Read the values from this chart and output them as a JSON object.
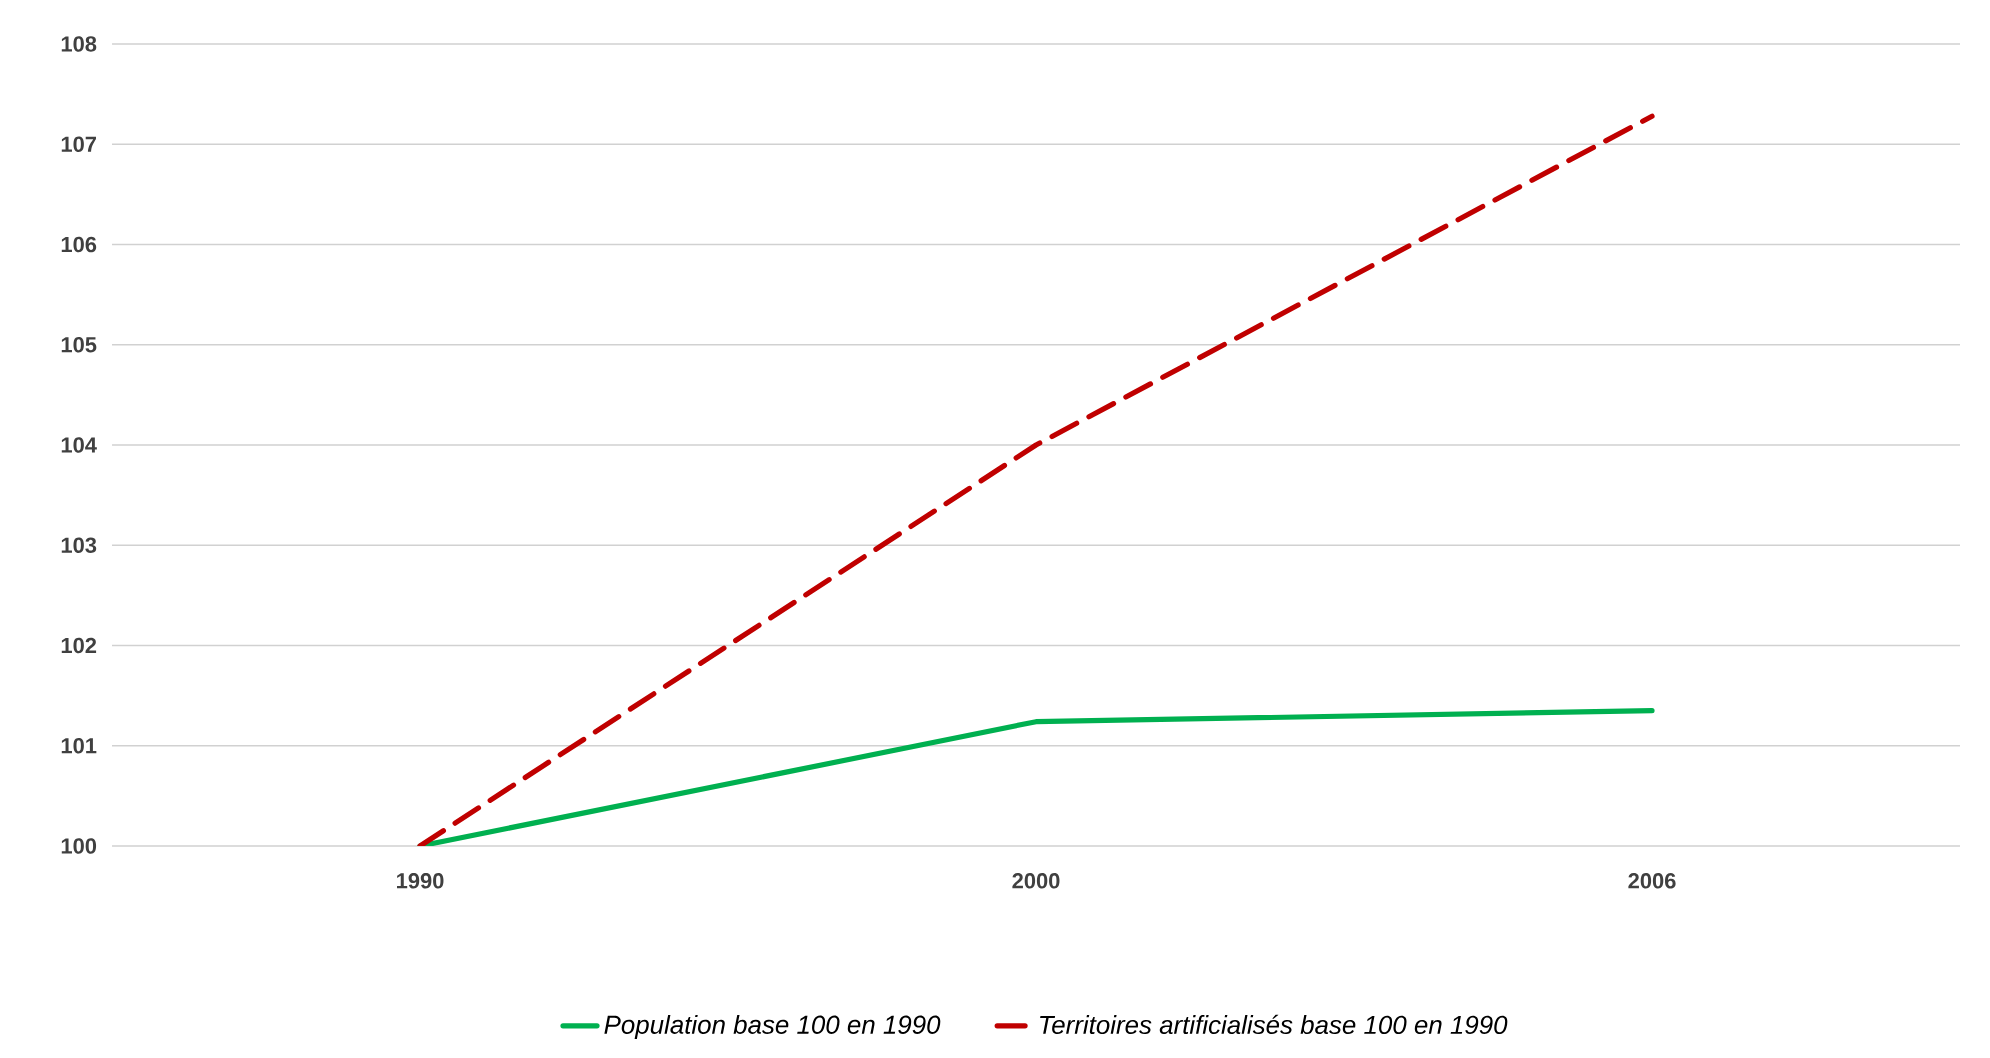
{
  "chart_data": {
    "type": "line",
    "categories": [
      "1990",
      "2000",
      "2006"
    ],
    "series": [
      {
        "name": "Population base 100 en 1990",
        "color": "#00b050",
        "line_style": "solid",
        "values": [
          100,
          101.24,
          101.35
        ]
      },
      {
        "name": "Territoires artificialisés base 100 en 1990",
        "color": "#c00000",
        "line_style": "dashed",
        "values": [
          100,
          104.0,
          107.28
        ]
      }
    ],
    "ylim": [
      100,
      108
    ],
    "yticks": [
      100,
      101,
      102,
      103,
      104,
      105,
      106,
      107,
      108
    ],
    "grid": "y",
    "legend": "bottom"
  }
}
